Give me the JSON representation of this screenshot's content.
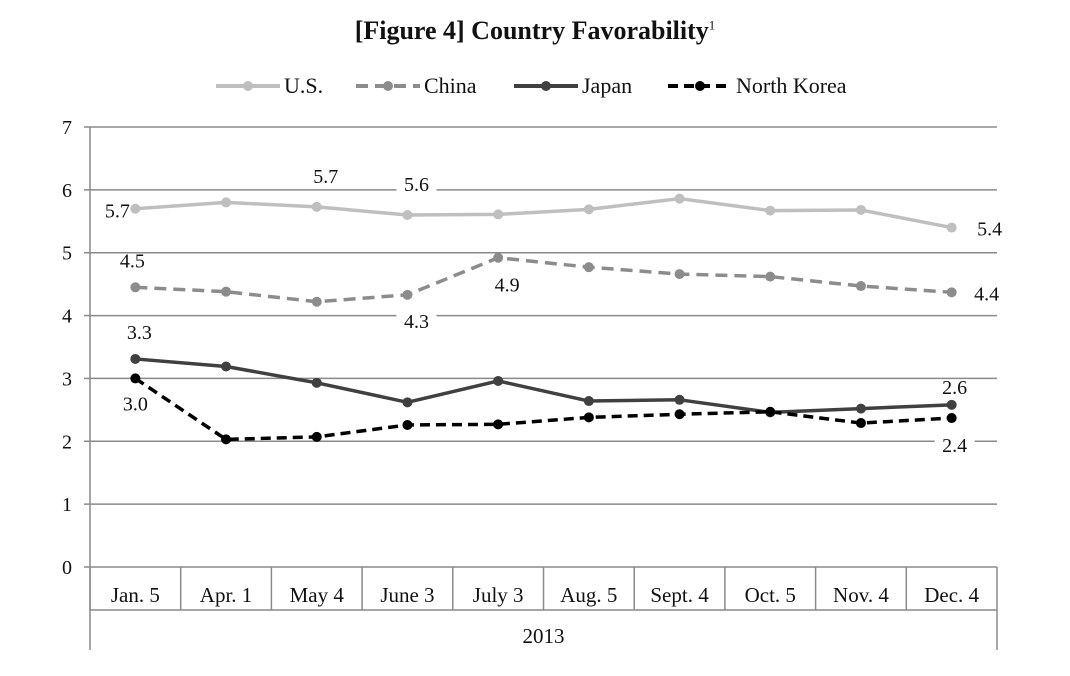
{
  "title": "[Figure 4] Country Favorability",
  "title_footnote": "1",
  "chart_data": {
    "type": "line",
    "title": "[Figure 4] Country Favorability",
    "categories": [
      "Jan. 5",
      "Apr. 1",
      "May 4",
      "June 3",
      "July 3",
      "Aug. 5",
      "Sept. 4",
      "Oct. 5",
      "Nov. 4",
      "Dec. 4"
    ],
    "group_label": "2013",
    "ylim": [
      0,
      7
    ],
    "yticks": [
      0,
      1,
      2,
      3,
      4,
      5,
      6,
      7
    ],
    "grid": true,
    "legend_position": "top",
    "series": [
      {
        "name": "U.S.",
        "style": "solid",
        "color": "#bfbfbf",
        "values": [
          5.7,
          5.8,
          5.73,
          5.6,
          5.61,
          5.69,
          5.86,
          5.67,
          5.68,
          5.4
        ],
        "labels": [
          {
            "index": 0,
            "text": "5.7"
          },
          {
            "index": 2,
            "text": "5.7"
          },
          {
            "index": 3,
            "text": "5.6"
          },
          {
            "index": 9,
            "text": "5.4"
          }
        ]
      },
      {
        "name": "China",
        "style": "dashed",
        "color": "#8c8c8c",
        "values": [
          4.45,
          4.38,
          4.22,
          4.33,
          4.92,
          4.77,
          4.66,
          4.62,
          4.47,
          4.37
        ],
        "labels": [
          {
            "index": 0,
            "text": "4.5"
          },
          {
            "index": 3,
            "text": "4.3"
          },
          {
            "index": 4,
            "text": "4.9"
          },
          {
            "index": 9,
            "text": "4.4"
          }
        ]
      },
      {
        "name": "Japan",
        "style": "solid",
        "color": "#404040",
        "values": [
          3.31,
          3.19,
          2.93,
          2.62,
          2.96,
          2.64,
          2.66,
          2.46,
          2.52,
          2.58
        ],
        "labels": [
          {
            "index": 0,
            "text": "3.3"
          },
          {
            "index": 9,
            "text": "2.6"
          }
        ]
      },
      {
        "name": "North Korea",
        "style": "dashed",
        "color": "#000000",
        "values": [
          3.0,
          2.03,
          2.07,
          2.26,
          2.27,
          2.38,
          2.43,
          2.47,
          2.29,
          2.37
        ],
        "labels": [
          {
            "index": 0,
            "text": "3.0"
          },
          {
            "index": 9,
            "text": "2.4"
          }
        ]
      }
    ]
  }
}
